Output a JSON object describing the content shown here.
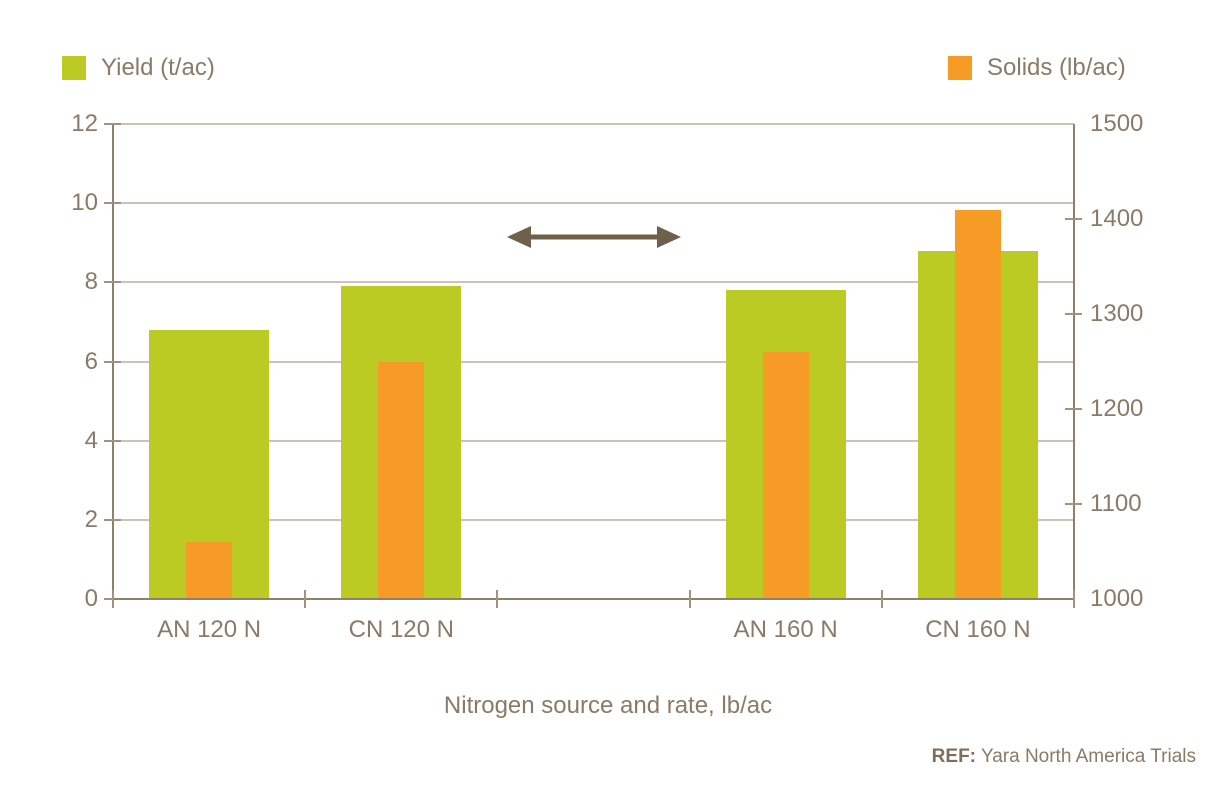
{
  "legend": {
    "yield_label": "Yield (t/ac)",
    "solids_label": "Solids (lb/ac)"
  },
  "colors": {
    "yield_green": "#bcca24",
    "solids_orange": "#f59b26",
    "text_taupe": "#8a7a66",
    "gridline": "#cdc3b5",
    "axis_line": "#8f7f6b",
    "arrow": "#6f604c",
    "background": "#ffffff"
  },
  "chart_data": {
    "type": "bar",
    "categories": [
      "AN 120 N",
      "CN 120 N",
      "",
      "AN 160 N",
      "CN 160 N"
    ],
    "series": [
      {
        "name": "Yield (t/ac)",
        "axis": "left",
        "color": "#bcca24",
        "values": [
          6.8,
          7.9,
          null,
          7.8,
          8.8
        ]
      },
      {
        "name": "Solids (lb/ac)",
        "axis": "right",
        "color": "#f59b26",
        "values": [
          1060,
          1250,
          null,
          1260,
          1410
        ]
      }
    ],
    "left_axis": {
      "min": 0,
      "max": 12,
      "ticks": [
        0,
        2,
        4,
        6,
        8,
        10,
        12
      ]
    },
    "right_axis": {
      "min": 1000,
      "max": 1500,
      "ticks": [
        1000,
        1100,
        1200,
        1300,
        1400,
        1500
      ]
    },
    "xlabel": "Nitrogen source and rate, lb/ac",
    "grid": true,
    "legend_position": "top",
    "annotation": {
      "type": "double-arrow",
      "slot_index": 2,
      "y_value_left": 9.15
    }
  },
  "footer": {
    "ref_label": "REF:",
    "ref_text": "Yara North America Trials"
  }
}
